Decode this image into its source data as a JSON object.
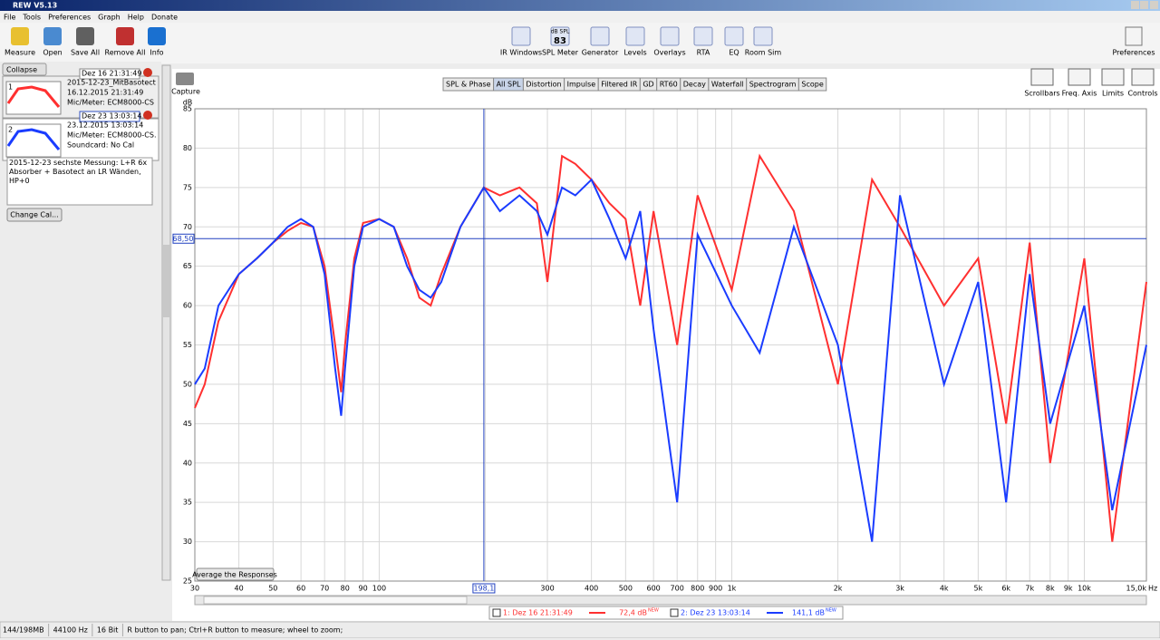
{
  "window": {
    "title": "REW V5.13"
  },
  "menu": [
    "File",
    "Tools",
    "Preferences",
    "Graph",
    "Help",
    "Donate"
  ],
  "toolbar_left": [
    "Measure",
    "Open",
    "Save All",
    "Remove All",
    "Info"
  ],
  "toolbar_center": [
    "IR Windows",
    "SPL Meter",
    "Generator",
    "Levels",
    "Overlays",
    "RTA",
    "EQ",
    "Room Sim"
  ],
  "spl_icon": {
    "unit": "dB SPL",
    "reading": "83"
  },
  "preferences": "Preferences",
  "toolbar_right": [
    "Scrollbars",
    "Freq. Axis",
    "Limits",
    "Controls"
  ],
  "capture": "Capture",
  "tabs": [
    "SPL & Phase",
    "All SPL",
    "Distortion",
    "Impulse",
    "Filtered IR",
    "GD",
    "RT60",
    "Decay",
    "Waterfall",
    "Spectrogram",
    "Scope"
  ],
  "side_panel": {
    "collapse": "Collapse",
    "measurements": [
      {
        "index": "1",
        "name": "Dez 16 21:31:49",
        "lines": [
          "2015-12-23_MitBasotect",
          "16.12.2015 21:31:49",
          "Mic/Meter: ECM8000-CS"
        ]
      },
      {
        "index": "2",
        "name": "Dez 23 13:03:14",
        "lines": [
          "23.12.2015 13:03:14",
          "Mic/Meter: ECM8000-CS.",
          "Soundcard: No Cal"
        ]
      }
    ],
    "notes": "2015-12-23 sechste Messung: L+R 6x Absorber + Basotect an LR  Wänden, HP+0",
    "change_cal": "Change Cal..."
  },
  "chart_data": {
    "type": "line",
    "y_label": "dB",
    "x_unit": "Hz",
    "x_scale": "log",
    "xlim": [
      30,
      15000
    ],
    "ylim": [
      25,
      85
    ],
    "yticks": [
      25,
      30,
      35,
      40,
      45,
      50,
      55,
      60,
      65,
      70,
      75,
      80,
      85
    ],
    "xticks": [
      30,
      40,
      50,
      60,
      70,
      80,
      90,
      100,
      200,
      300,
      400,
      500,
      600,
      700,
      800,
      900,
      {
        "value": 1000,
        "label": "1k"
      },
      {
        "value": 2000,
        "label": "2k"
      },
      {
        "value": 3000,
        "label": "3k"
      },
      {
        "value": 4000,
        "label": "4k"
      },
      {
        "value": 5000,
        "label": "5k"
      },
      {
        "value": 6000,
        "label": "6k"
      },
      {
        "value": 7000,
        "label": "7k"
      },
      {
        "value": 8000,
        "label": "8k"
      },
      {
        "value": 9000,
        "label": "9k"
      },
      {
        "value": 10000,
        "label": "10k"
      },
      {
        "value": 15000,
        "label": "15,0k"
      }
    ],
    "cursor": {
      "x": {
        "value": 198.1,
        "label": "198,1"
      },
      "y": {
        "value": 68.5,
        "label": "68,50"
      }
    },
    "button": "Average the Responses",
    "x": [
      30,
      32,
      35,
      40,
      45,
      50,
      55,
      60,
      65,
      70,
      75,
      78,
      80,
      85,
      90,
      100,
      110,
      120,
      130,
      140,
      150,
      170,
      198,
      220,
      250,
      280,
      300,
      330,
      360,
      400,
      450,
      500,
      550,
      600,
      700,
      800,
      1000,
      1200,
      1500,
      2000,
      2500,
      3000,
      4000,
      5000,
      6000,
      7000,
      8000,
      10000,
      12000,
      15000
    ],
    "series": [
      {
        "name": "1: Dez 16 21:31:49",
        "color": "#ff3030",
        "level": "72,4 dB",
        "badge": "NEW",
        "values": [
          47,
          50,
          58,
          64,
          66,
          68,
          69.5,
          70.5,
          70,
          65,
          55,
          49,
          55,
          66,
          70.5,
          71,
          70,
          66,
          61,
          60,
          64,
          70,
          75,
          74,
          75,
          73,
          63,
          79,
          78,
          76,
          73,
          71,
          60,
          72,
          55,
          74,
          62,
          79,
          72,
          50,
          76,
          70,
          60,
          66,
          45,
          68,
          40,
          66,
          30,
          63
        ]
      },
      {
        "name": "2: Dez 23 13:03:14",
        "color": "#1a3cff",
        "level": "141,1 dB",
        "badge": "NEW",
        "values": [
          50,
          52,
          60,
          64,
          66,
          68,
          70,
          71,
          70,
          64,
          52,
          46,
          52,
          65,
          70,
          71,
          70,
          65,
          62,
          61,
          63,
          70,
          75,
          72,
          74,
          72,
          69,
          75,
          74,
          76,
          71,
          66,
          72,
          57,
          35,
          69,
          60,
          54,
          70,
          55,
          30,
          74,
          50,
          63,
          35,
          64,
          45,
          60,
          34,
          55
        ]
      }
    ]
  },
  "status_bar": [
    "144/198MB",
    "44100 Hz",
    "16 Bit",
    "R button to pan; Ctrl+R button to measure; wheel to zoom;"
  ]
}
